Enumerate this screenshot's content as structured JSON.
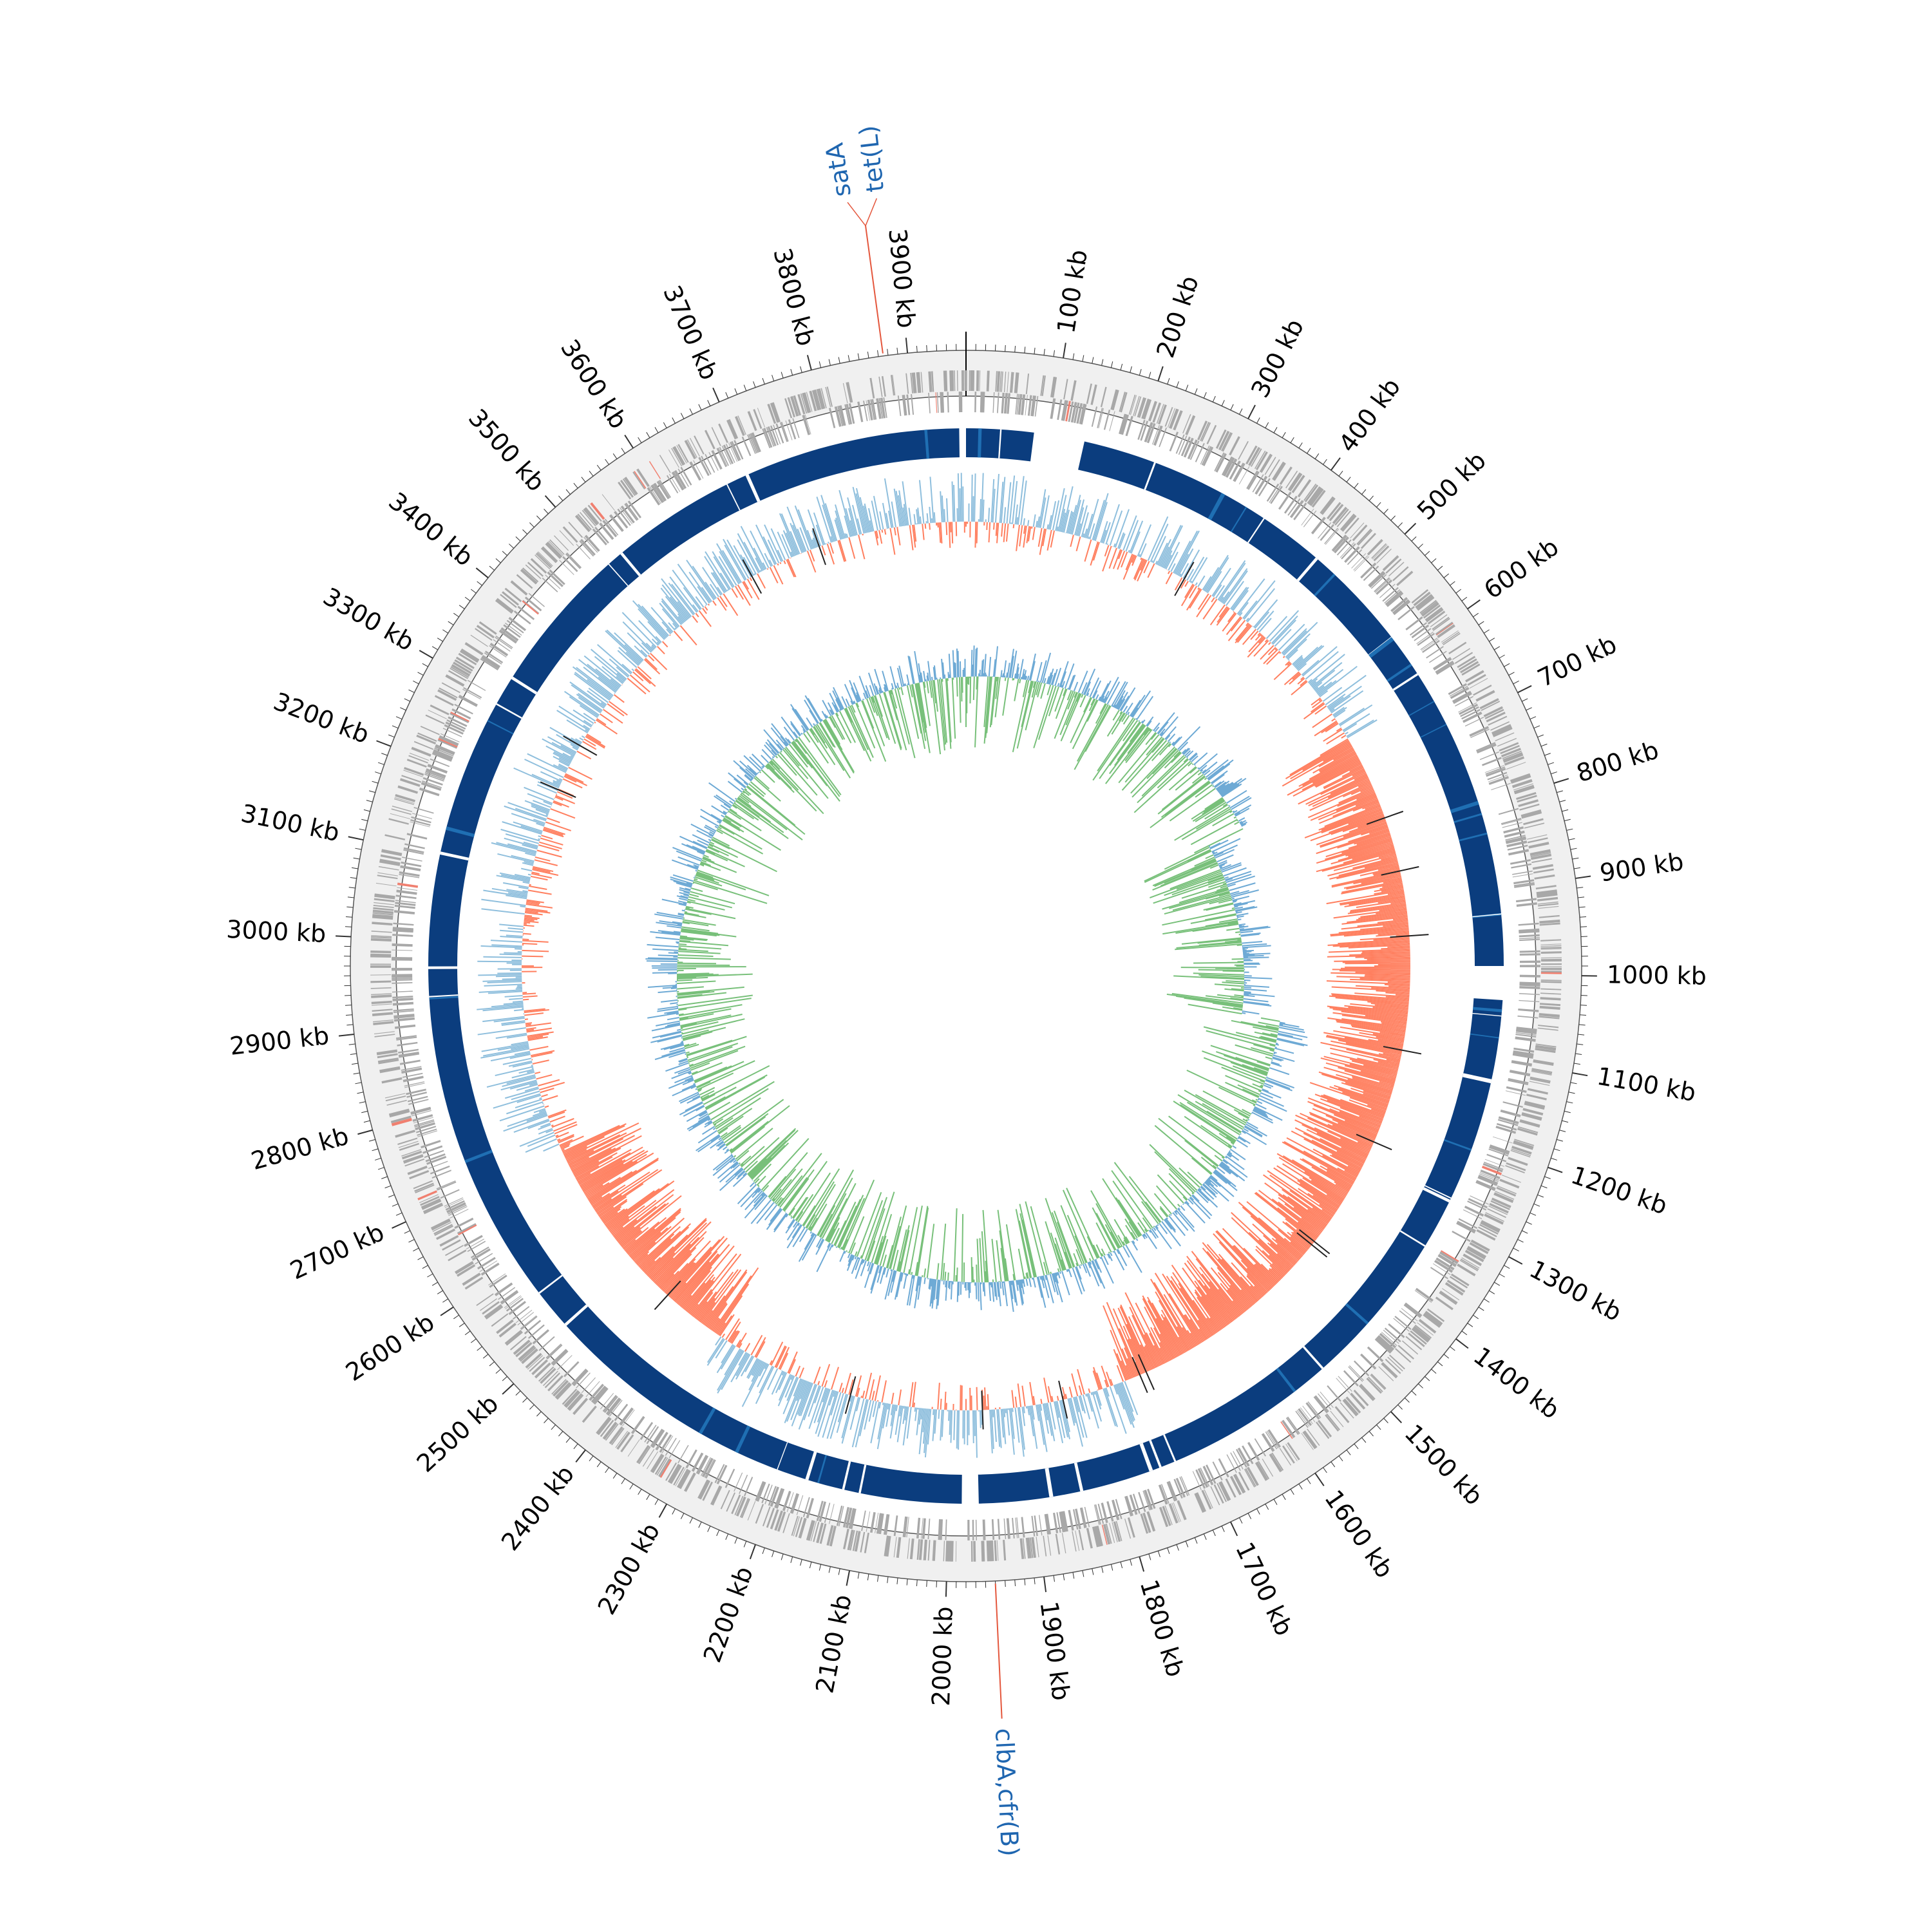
{
  "genome": {
    "ticks": [
      {
        "pos": 100,
        "label": "100 kb"
      },
      {
        "pos": 200,
        "label": "200 kb"
      },
      {
        "pos": 300,
        "label": "300 kb"
      },
      {
        "pos": 400,
        "label": "400 kb"
      },
      {
        "pos": 500,
        "label": "500 kb"
      },
      {
        "pos": 600,
        "label": "600 kb"
      },
      {
        "pos": 700,
        "label": "700 kb"
      },
      {
        "pos": 800,
        "label": "800 kb"
      },
      {
        "pos": 900,
        "label": "900 kb"
      },
      {
        "pos": 1000,
        "label": "1000 kb"
      },
      {
        "pos": 1100,
        "label": "1100 kb"
      },
      {
        "pos": 1200,
        "label": "1200 kb"
      },
      {
        "pos": 1300,
        "label": "1300 kb"
      },
      {
        "pos": 1400,
        "label": "1400 kb"
      },
      {
        "pos": 1500,
        "label": "1500 kb"
      },
      {
        "pos": 1600,
        "label": "1600 kb"
      },
      {
        "pos": 1700,
        "label": "1700 kb"
      },
      {
        "pos": 1800,
        "label": "1800 kb"
      },
      {
        "pos": 1900,
        "label": "1900 kb"
      },
      {
        "pos": 2000,
        "label": "2000 kb"
      },
      {
        "pos": 2100,
        "label": "2100 kb"
      },
      {
        "pos": 2200,
        "label": "2200 kb"
      },
      {
        "pos": 2300,
        "label": "2300 kb"
      },
      {
        "pos": 2400,
        "label": "2400 kb"
      },
      {
        "pos": 2500,
        "label": "2500 kb"
      },
      {
        "pos": 2600,
        "label": "2600 kb"
      },
      {
        "pos": 2700,
        "label": "2700 kb"
      },
      {
        "pos": 2800,
        "label": "2800 kb"
      },
      {
        "pos": 2900,
        "label": "2900 kb"
      },
      {
        "pos": 3000,
        "label": "3000 kb"
      },
      {
        "pos": 3100,
        "label": "3100 kb"
      },
      {
        "pos": 3200,
        "label": "3200 kb"
      },
      {
        "pos": 3300,
        "label": "3300 kb"
      },
      {
        "pos": 3400,
        "label": "3400 kb"
      },
      {
        "pos": 3500,
        "label": "3500 kb"
      },
      {
        "pos": 3600,
        "label": "3600 kb"
      },
      {
        "pos": 3700,
        "label": "3700 kb"
      },
      {
        "pos": 3800,
        "label": "3800 kb"
      },
      {
        "pos": 3900,
        "label": "3900 kb"
      }
    ],
    "annotations": [
      {
        "pos": 3875,
        "lines": [
          "tet(L)",
          "satA"
        ],
        "side": "top"
      },
      {
        "pos": 1950,
        "lines": [
          "clbA,cfr(B)"
        ],
        "side": "bottom"
      }
    ],
    "gaps": [
      {
        "start": 80,
        "end": 140
      },
      {
        "start": 990,
        "end": 1030
      },
      {
        "start": 1965,
        "end": 1985
      }
    ],
    "colors": {
      "background_ring": "#f0f0f0",
      "gene_tick": "#a8a8a8",
      "gene_highlight": "#f08070",
      "blast_primary": "#0b3d7e",
      "blast_secondary": "#1f6fb3",
      "gc_content_high": "#8fbfdd",
      "gc_content_low": "#ff7f5f",
      "gc_skew_positive": "#6eaad5",
      "gc_skew_negative": "#78c07a",
      "annotation_line": "#e4573d",
      "annotation_text": "#1f66b0"
    }
  }
}
